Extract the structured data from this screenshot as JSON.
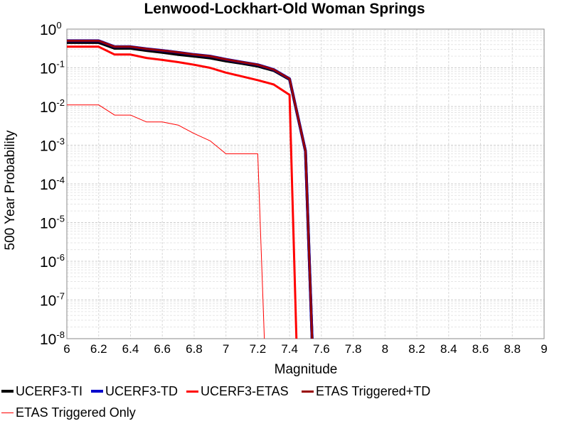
{
  "chart_data": {
    "type": "line",
    "title": "Lenwood-Lockhart-Old Woman Springs",
    "xlabel": "Magnitude",
    "ylabel": "500 Year Probability",
    "xlim": [
      6,
      9
    ],
    "ylim": [
      1e-08,
      1
    ],
    "yscale": "log",
    "grid": true,
    "legend_position": "bottom",
    "xticks": [
      "6",
      "6.2",
      "6.4",
      "6.6",
      "6.8",
      "7",
      "7.2",
      "7.4",
      "7.6",
      "7.8",
      "8",
      "8.2",
      "8.4",
      "8.6",
      "8.8",
      "9"
    ],
    "yticks": [
      {
        "base": "10",
        "exp": "0"
      },
      {
        "base": "10",
        "exp": "-1"
      },
      {
        "base": "10",
        "exp": "-2"
      },
      {
        "base": "10",
        "exp": "-3"
      },
      {
        "base": "10",
        "exp": "-4"
      },
      {
        "base": "10",
        "exp": "-5"
      },
      {
        "base": "10",
        "exp": "-6"
      },
      {
        "base": "10",
        "exp": "-7"
      },
      {
        "base": "10",
        "exp": "-8"
      }
    ],
    "series": [
      {
        "name": "UCERF3-TI",
        "color": "#000000",
        "width": 4,
        "points": [
          [
            6.0,
            0.45
          ],
          [
            6.2,
            0.45
          ],
          [
            6.3,
            0.32
          ],
          [
            6.4,
            0.32
          ],
          [
            6.5,
            0.28
          ],
          [
            6.6,
            0.25
          ],
          [
            6.7,
            0.22
          ],
          [
            6.8,
            0.2
          ],
          [
            6.9,
            0.18
          ],
          [
            7.0,
            0.15
          ],
          [
            7.1,
            0.13
          ],
          [
            7.2,
            0.11
          ],
          [
            7.3,
            0.085
          ],
          [
            7.4,
            0.05
          ],
          [
            7.5,
            0.0007
          ],
          [
            7.55,
            1e-09
          ]
        ]
      },
      {
        "name": "UCERF3-TD",
        "color": "#0000cc",
        "width": 4,
        "points": [
          [
            6.0,
            0.5
          ],
          [
            6.2,
            0.5
          ],
          [
            6.3,
            0.35
          ],
          [
            6.4,
            0.35
          ],
          [
            6.5,
            0.31
          ],
          [
            6.6,
            0.28
          ],
          [
            6.7,
            0.25
          ],
          [
            6.8,
            0.22
          ],
          [
            6.9,
            0.2
          ],
          [
            7.0,
            0.165
          ],
          [
            7.1,
            0.14
          ],
          [
            7.2,
            0.12
          ],
          [
            7.3,
            0.09
          ],
          [
            7.4,
            0.052
          ],
          [
            7.5,
            0.0007
          ],
          [
            7.55,
            1e-09
          ]
        ]
      },
      {
        "name": "UCERF3-ETAS",
        "color": "#ff0000",
        "width": 3,
        "points": [
          [
            6.0,
            0.35
          ],
          [
            6.2,
            0.35
          ],
          [
            6.3,
            0.22
          ],
          [
            6.4,
            0.22
          ],
          [
            6.5,
            0.18
          ],
          [
            6.6,
            0.16
          ],
          [
            6.7,
            0.14
          ],
          [
            6.8,
            0.12
          ],
          [
            6.9,
            0.1
          ],
          [
            7.0,
            0.075
          ],
          [
            7.1,
            0.06
          ],
          [
            7.2,
            0.048
          ],
          [
            7.3,
            0.037
          ],
          [
            7.4,
            0.02
          ],
          [
            7.45,
            1e-09
          ]
        ]
      },
      {
        "name": "ETAS Triggered+TD",
        "color": "#990000",
        "width": 3,
        "points": [
          [
            6.0,
            0.5
          ],
          [
            6.2,
            0.5
          ],
          [
            6.3,
            0.35
          ],
          [
            6.4,
            0.35
          ],
          [
            6.5,
            0.31
          ],
          [
            6.6,
            0.28
          ],
          [
            6.7,
            0.25
          ],
          [
            6.8,
            0.22
          ],
          [
            6.9,
            0.2
          ],
          [
            7.0,
            0.165
          ],
          [
            7.1,
            0.14
          ],
          [
            7.2,
            0.12
          ],
          [
            7.3,
            0.09
          ],
          [
            7.4,
            0.052
          ],
          [
            7.5,
            0.0007
          ],
          [
            7.55,
            1e-09
          ]
        ]
      },
      {
        "name": "ETAS Triggered Only",
        "color": "#ff0000",
        "width": 1,
        "points": [
          [
            6.0,
            0.011
          ],
          [
            6.2,
            0.011
          ],
          [
            6.3,
            0.006
          ],
          [
            6.4,
            0.006
          ],
          [
            6.5,
            0.004
          ],
          [
            6.6,
            0.004
          ],
          [
            6.7,
            0.0033
          ],
          [
            6.8,
            0.002
          ],
          [
            6.9,
            0.0013
          ],
          [
            7.0,
            0.0006
          ],
          [
            7.2,
            0.0006
          ],
          [
            7.25,
            1e-09
          ]
        ]
      }
    ]
  }
}
